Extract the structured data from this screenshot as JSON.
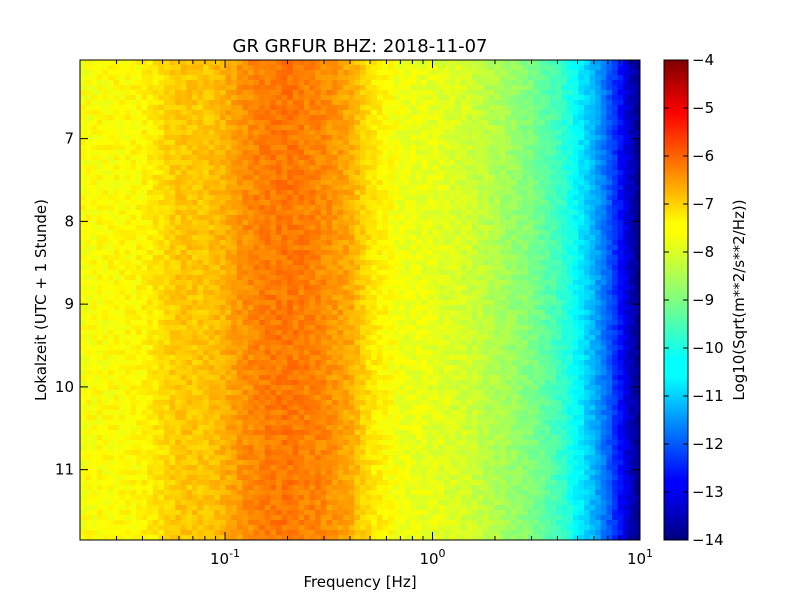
{
  "chart_data": {
    "type": "heatmap",
    "title": "GR GRFUR BHZ: 2018-11-07",
    "xlabel": "Frequency [Hz]",
    "ylabel": "Lokalzeit (UTC + 1 Stunde)",
    "x_scale": "log",
    "xlim": [
      0.02,
      10
    ],
    "x_ticks": [
      {
        "value": 0.1,
        "base": "10",
        "exp": "-1"
      },
      {
        "value": 1,
        "base": "10",
        "exp": "0"
      },
      {
        "value": 10,
        "base": "10",
        "exp": "1"
      }
    ],
    "ylim": [
      6.05,
      11.85
    ],
    "y_inverted": true,
    "y_ticks": [
      7,
      8,
      9,
      10,
      11
    ],
    "y_tick_labels": [
      "7",
      "8",
      "9",
      "10",
      "11"
    ],
    "colorbar": {
      "label": "Log10(Sqrt(m**2/s**2/Hz))",
      "colormap": "jet",
      "range": [
        -14,
        -4
      ],
      "ticks": [
        -4,
        -5,
        -6,
        -7,
        -8,
        -9,
        -10,
        -11,
        -12,
        -13,
        -14
      ],
      "tick_labels": [
        "−4",
        "−5",
        "−6",
        "−7",
        "−8",
        "−9",
        "−10",
        "−11",
        "−12",
        "−13",
        "−14"
      ]
    },
    "psd_profile": {
      "frequency_hz": [
        0.02,
        0.04,
        0.06,
        0.08,
        0.1,
        0.12,
        0.15,
        0.2,
        0.3,
        0.4,
        0.5,
        0.7,
        1.0,
        1.5,
        2.0,
        3.0,
        4.0,
        5.0,
        6.0,
        7.0,
        8.0,
        9.0,
        10.0
      ],
      "log10_psd": [
        -7.8,
        -7.7,
        -7.2,
        -7.2,
        -7.0,
        -6.7,
        -6.5,
        -6.4,
        -6.6,
        -6.9,
        -7.5,
        -7.9,
        -8.0,
        -8.2,
        -8.5,
        -9.0,
        -9.6,
        -10.3,
        -11.0,
        -11.8,
        -12.6,
        -13.4,
        -13.9
      ]
    }
  }
}
